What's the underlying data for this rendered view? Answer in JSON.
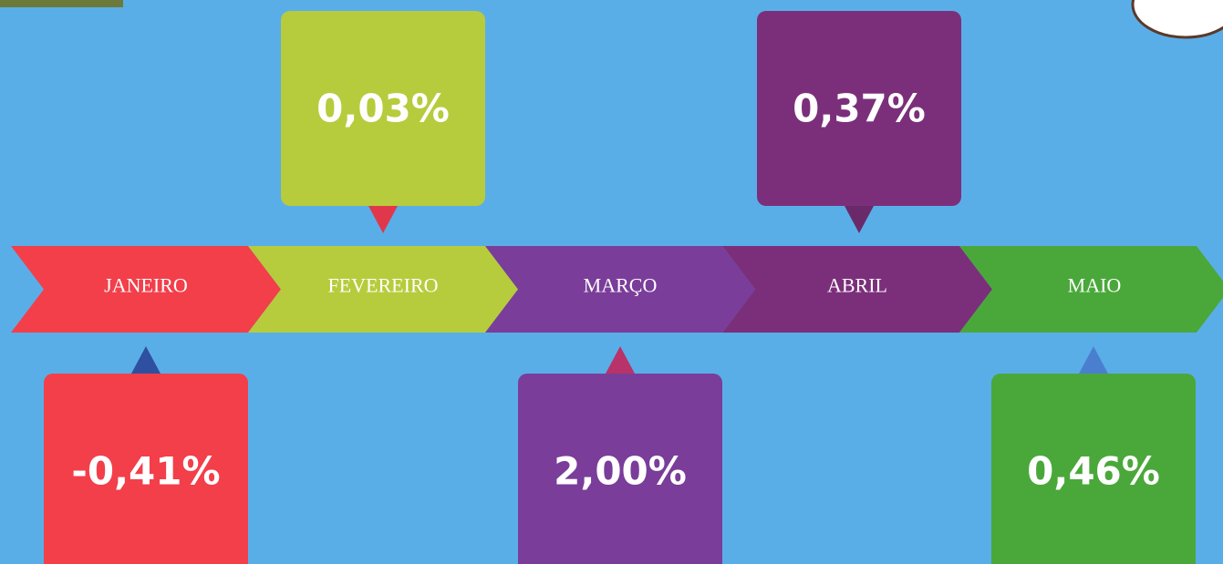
{
  "months": [
    {
      "label": "JANEIRO",
      "value": "-0,41%"
    },
    {
      "label": "FEVEREIRO",
      "value": "0,03%"
    },
    {
      "label": "MARÇO",
      "value": "2,00%"
    },
    {
      "label": "ABRIL",
      "value": "0,37%"
    },
    {
      "label": "MAIO",
      "value": "0,46%"
    }
  ]
}
